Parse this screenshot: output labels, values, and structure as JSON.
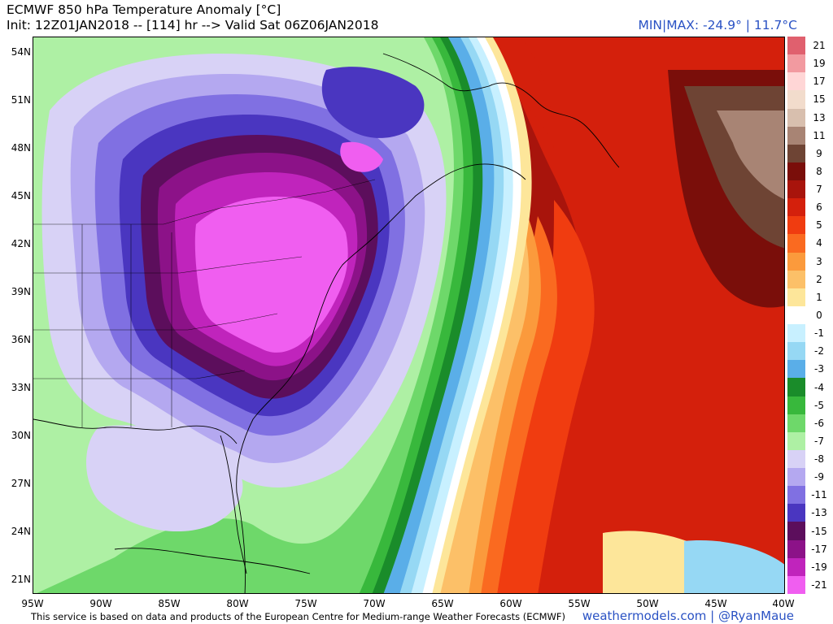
{
  "header": {
    "title": "ECMWF 850 hPa Temperature Anomaly [°C]",
    "init_line": "Init: 12Z01JAN2018 -- [114] hr --> Valid Sat 06Z06JAN2018",
    "minmax": "MIN|MAX: -24.9° | 11.7°C"
  },
  "map": {
    "lat_labels": [
      "54N",
      "51N",
      "48N",
      "45N",
      "42N",
      "39N",
      "36N",
      "33N",
      "30N",
      "27N",
      "24N",
      "21N"
    ],
    "lon_labels": [
      "95W",
      "90W",
      "85W",
      "80W",
      "75W",
      "70W",
      "65W",
      "60W",
      "55W",
      "50W",
      "45W",
      "40W"
    ]
  },
  "colorbar": {
    "levels": [
      {
        "label": "21",
        "color": "#e0606e"
      },
      {
        "label": "19",
        "color": "#f29aa0"
      },
      {
        "label": "17",
        "color": "#ffd6d6"
      },
      {
        "label": "15",
        "color": "#f2dccc"
      },
      {
        "label": "13",
        "color": "#d8bfae"
      },
      {
        "label": "11",
        "color": "#a88474"
      },
      {
        "label": "9",
        "color": "#6e4434"
      },
      {
        "label": "8",
        "color": "#7a0e0a"
      },
      {
        "label": "7",
        "color": "#a8140c"
      },
      {
        "label": "6",
        "color": "#d4200c"
      },
      {
        "label": "5",
        "color": "#f03c10"
      },
      {
        "label": "4",
        "color": "#fa6a20"
      },
      {
        "label": "3",
        "color": "#fb9a3c"
      },
      {
        "label": "2",
        "color": "#fcc068"
      },
      {
        "label": "1",
        "color": "#fde69a"
      },
      {
        "label": "0",
        "color": "#ffffff"
      },
      {
        "label": "-1",
        "color": "#c8f0ff"
      },
      {
        "label": "-2",
        "color": "#96d8f4"
      },
      {
        "label": "-3",
        "color": "#5aaee8"
      },
      {
        "label": "-4",
        "color": "#1a8c2a"
      },
      {
        "label": "-5",
        "color": "#38b83c"
      },
      {
        "label": "-6",
        "color": "#6ed86a"
      },
      {
        "label": "-7",
        "color": "#aef0a4"
      },
      {
        "label": "-8",
        "color": "#d8d2f6"
      },
      {
        "label": "-9",
        "color": "#b4a8f0"
      },
      {
        "label": "-11",
        "color": "#8070e2"
      },
      {
        "label": "-13",
        "color": "#4a36c0"
      },
      {
        "label": "-15",
        "color": "#5c0e5c"
      },
      {
        "label": "-17",
        "color": "#8c1288"
      },
      {
        "label": "-19",
        "color": "#c024bc"
      },
      {
        "label": "-21",
        "color": "#f05ef0"
      }
    ]
  },
  "footer": {
    "attribution": "This service is based on data and products of the European Centre for Medium-range Weather Forecasts (ECMWF)",
    "credit": "weathermodels.com | @RyanMaue"
  }
}
